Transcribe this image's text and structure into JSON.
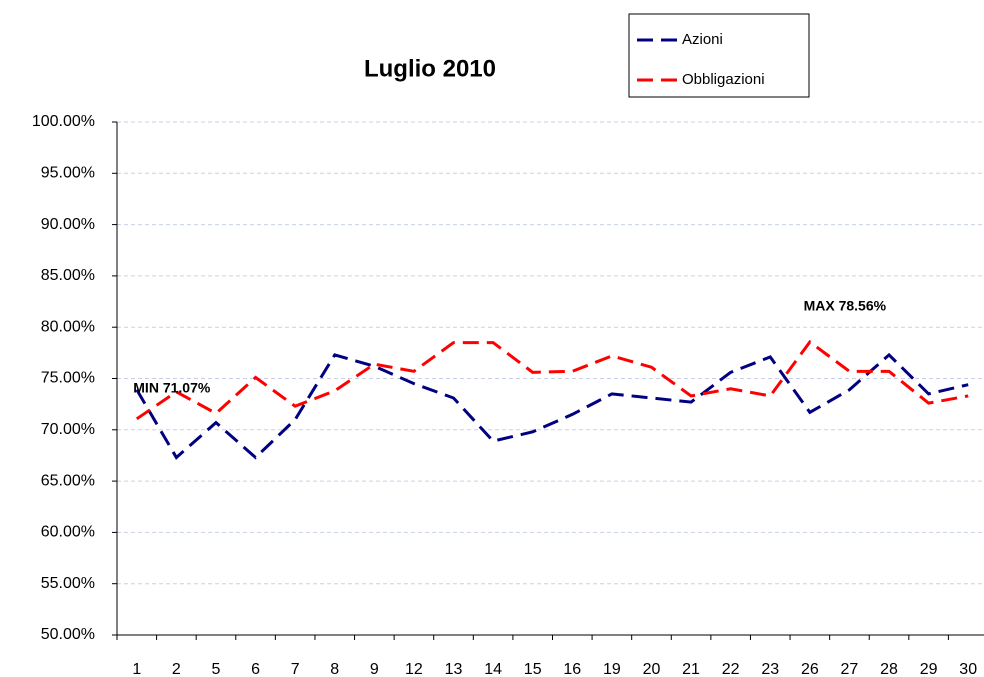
{
  "chart_data": {
    "type": "line",
    "title": "Luglio 2010",
    "categories": [
      "1",
      "2",
      "5",
      "6",
      "7",
      "8",
      "9",
      "12",
      "13",
      "14",
      "15",
      "16",
      "19",
      "20",
      "21",
      "22",
      "23",
      "26",
      "27",
      "28",
      "29",
      "30"
    ],
    "series": [
      {
        "name": "Azioni",
        "color": "#000080",
        "values": [
          73.9,
          67.3,
          70.7,
          67.3,
          71.0,
          77.3,
          76.2,
          74.5,
          73.1,
          68.9,
          69.8,
          71.5,
          73.5,
          73.1,
          72.7,
          75.6,
          77.1,
          71.7,
          73.9,
          77.3,
          73.5,
          74.4
        ]
      },
      {
        "name": "Obbligazioni",
        "color": "#ff0000",
        "values": [
          71.07,
          73.7,
          71.6,
          75.1,
          72.3,
          73.8,
          76.4,
          75.7,
          78.5,
          78.5,
          75.6,
          75.7,
          77.2,
          76.1,
          73.3,
          74.0,
          73.3,
          78.56,
          75.7,
          75.7,
          72.6,
          73.3
        ]
      }
    ],
    "ylim": [
      50,
      100
    ],
    "yticks": [
      {
        "value": 50,
        "label": "50.00%"
      },
      {
        "value": 55,
        "label": "55.00%"
      },
      {
        "value": 60,
        "label": "60.00%"
      },
      {
        "value": 65,
        "label": "65.00%"
      },
      {
        "value": 70,
        "label": "70.00%"
      },
      {
        "value": 75,
        "label": "75.00%"
      },
      {
        "value": 80,
        "label": "80.00%"
      },
      {
        "value": 85,
        "label": "85.00%"
      },
      {
        "value": 90,
        "label": "90.00%"
      },
      {
        "value": 95,
        "label": "95.00%"
      },
      {
        "value": 100,
        "label": "100.00%"
      }
    ],
    "grid": true,
    "legend": "top-right",
    "annotations": [
      {
        "text": "MIN 71.07%",
        "x": "1",
        "y": 71.07
      },
      {
        "text": "MAX 78.56%",
        "x": "26",
        "y": 78.56
      }
    ]
  }
}
